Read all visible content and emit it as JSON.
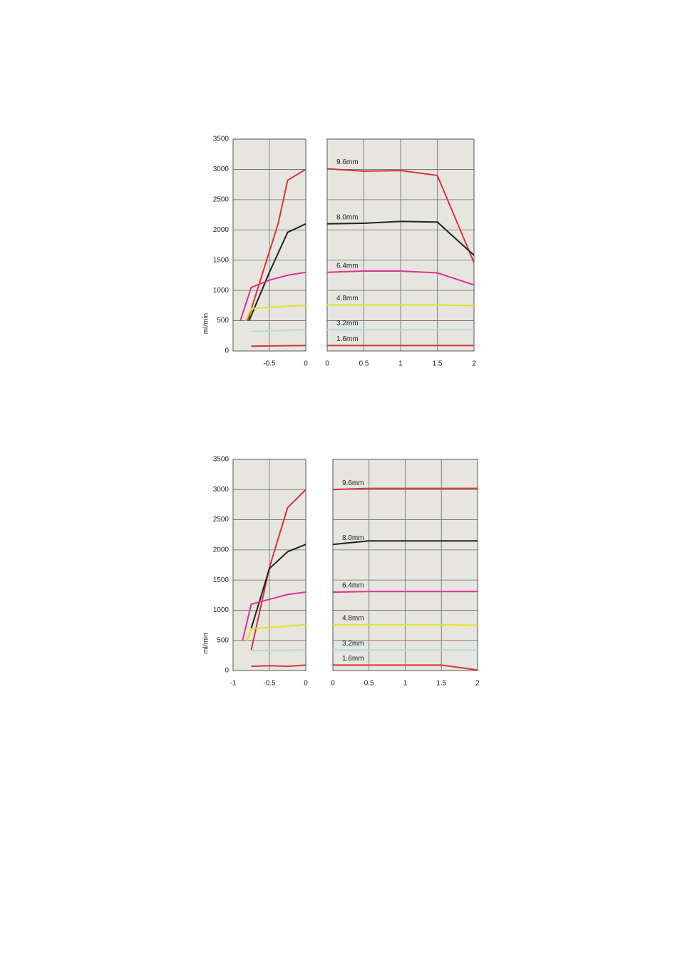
{
  "chart_data": [
    {
      "type": "line",
      "y_label": "ml/min",
      "ylim": [
        0,
        3500
      ],
      "yticks": [
        0,
        500,
        1000,
        1500,
        2000,
        2500,
        3000,
        3500
      ],
      "grid": true,
      "panels": [
        {
          "xlim": [
            -1,
            0
          ],
          "xticks": [
            -0.5,
            0
          ],
          "series": [
            {
              "color": "#d8343a",
              "x": [
                -0.8,
                -0.38,
                -0.25,
                0
              ],
              "values": [
                500,
                2100,
                2820,
                3000
              ]
            },
            {
              "color": "#222222",
              "x": [
                -0.78,
                -0.5,
                -0.25,
                0
              ],
              "values": [
                500,
                1300,
                1960,
                2100
              ]
            },
            {
              "color": "#e0309a",
              "x": [
                -0.9,
                -0.75,
                -0.5,
                -0.25,
                0
              ],
              "values": [
                500,
                1050,
                1170,
                1250,
                1300
              ]
            },
            {
              "color": "#e8e020",
              "x": [
                -0.83,
                -0.75,
                -0.25,
                0
              ],
              "values": [
                500,
                700,
                740,
                750
              ]
            },
            {
              "color": "#a8dce8",
              "x": [
                -0.75,
                0
              ],
              "values": [
                320,
                350
              ]
            },
            {
              "color": "#d8343a",
              "x": [
                -0.75,
                0
              ],
              "values": [
                80,
                90
              ]
            }
          ]
        },
        {
          "xlim": [
            0,
            2
          ],
          "xticks": [
            0,
            0.5,
            1,
            1.5,
            2
          ],
          "series": [
            {
              "name": "9.6mm",
              "color": "#d8343a",
              "x": [
                0,
                0.5,
                1,
                1.5,
                2
              ],
              "values": [
                3010,
                2970,
                2980,
                2900,
                1460
              ]
            },
            {
              "name": "8.0mm",
              "color": "#222222",
              "x": [
                0,
                0.5,
                1,
                1.5,
                2
              ],
              "values": [
                2100,
                2110,
                2140,
                2130,
                1580
              ]
            },
            {
              "name": "6.4mm",
              "color": "#e0309a",
              "x": [
                0,
                0.5,
                1,
                1.5,
                2
              ],
              "values": [
                1300,
                1320,
                1320,
                1290,
                1090
              ]
            },
            {
              "name": "4.8mm",
              "color": "#e8e020",
              "x": [
                0,
                0.5,
                1,
                1.5,
                2
              ],
              "values": [
                760,
                760,
                760,
                760,
                750
              ]
            },
            {
              "name": "3.2mm",
              "color": "#a8dce8",
              "x": [
                0,
                2
              ],
              "values": [
                350,
                350
              ]
            },
            {
              "name": "1.6mm",
              "color": "#d8343a",
              "x": [
                0,
                2
              ],
              "values": [
                90,
                90
              ]
            }
          ]
        }
      ]
    },
    {
      "type": "line",
      "y_label": "ml/min",
      "ylim": [
        0,
        3500
      ],
      "yticks": [
        0,
        500,
        1000,
        1500,
        2000,
        2500,
        3000,
        3500
      ],
      "grid": true,
      "panels": [
        {
          "xlim": [
            -1,
            0
          ],
          "xticks": [
            -1,
            -0.5,
            0
          ],
          "series": [
            {
              "color": "#d8343a",
              "x": [
                -0.75,
                -0.5,
                -0.25,
                0
              ],
              "values": [
                340,
                1710,
                2700,
                3000
              ]
            },
            {
              "color": "#222222",
              "x": [
                -0.75,
                -0.5,
                -0.25,
                0
              ],
              "values": [
                700,
                1690,
                1970,
                2090
              ]
            },
            {
              "color": "#e0309a",
              "x": [
                -0.87,
                -0.75,
                -0.5,
                -0.25,
                0
              ],
              "values": [
                500,
                1100,
                1180,
                1260,
                1300
              ]
            },
            {
              "color": "#e8e020",
              "x": [
                -0.81,
                -0.75,
                0
              ],
              "values": [
                500,
                690,
                760
              ]
            },
            {
              "color": "#a8dce8",
              "x": [
                -0.75,
                0
              ],
              "values": [
                330,
                340
              ]
            },
            {
              "color": "#d8343a",
              "x": [
                -0.75,
                -0.5,
                -0.25,
                0
              ],
              "values": [
                70,
                80,
                70,
                90
              ]
            }
          ]
        },
        {
          "xlim": [
            0,
            2
          ],
          "xticks": [
            0,
            0.5,
            1,
            1.5,
            2
          ],
          "series": [
            {
              "name": "9.6mm",
              "color": "#d8343a",
              "x": [
                0,
                0.5,
                1,
                1.5,
                2
              ],
              "values": [
                3000,
                3020,
                3020,
                3020,
                3020
              ]
            },
            {
              "name": "8.0mm",
              "color": "#222222",
              "x": [
                0,
                0.5,
                1,
                1.5,
                2
              ],
              "values": [
                2090,
                2150,
                2150,
                2150,
                2150
              ]
            },
            {
              "name": "6.4mm",
              "color": "#e0309a",
              "x": [
                0,
                0.5,
                1,
                1.5,
                2
              ],
              "values": [
                1300,
                1310,
                1310,
                1310,
                1310
              ]
            },
            {
              "name": "4.8mm",
              "color": "#e8e020",
              "x": [
                0,
                0.5,
                1,
                1.5,
                2
              ],
              "values": [
                760,
                760,
                760,
                760,
                750
              ]
            },
            {
              "name": "3.2mm",
              "color": "#a8dce8",
              "x": [
                0,
                2
              ],
              "values": [
                340,
                340
              ]
            },
            {
              "name": "1.6mm",
              "color": "#d8343a",
              "x": [
                0,
                1.5,
                2
              ],
              "values": [
                90,
                90,
                10
              ]
            }
          ]
        }
      ]
    }
  ]
}
